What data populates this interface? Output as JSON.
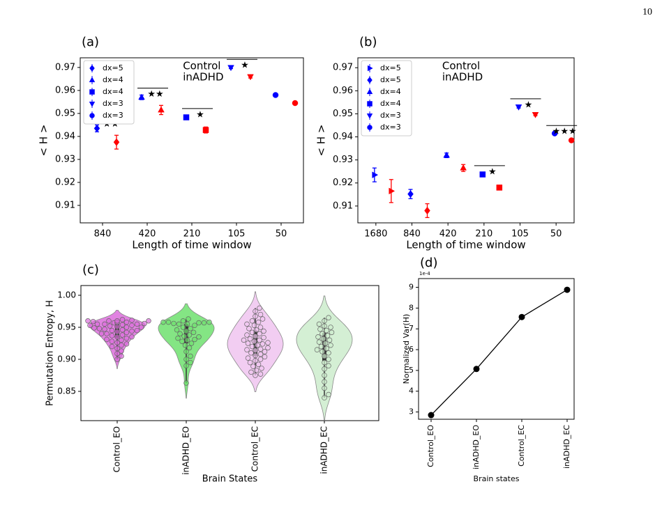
{
  "page_number": "10",
  "chart_data": [
    {
      "type": "errorbar",
      "title": "(a)",
      "xlabel": "Length of time window",
      "ylabel": "< H >",
      "categories": [
        "840",
        "420",
        "210",
        "105",
        "50"
      ],
      "markers": [
        "diamond",
        "triangle-up",
        "square",
        "triangle-down",
        "circle"
      ],
      "series": [
        {
          "name": "Control",
          "color": "#0000ff",
          "values": [
            0.9435,
            0.957,
            0.9483,
            0.97,
            0.958
          ],
          "errors": [
            0.0015,
            0.001,
            0.0008,
            0.0005,
            0.0004
          ]
        },
        {
          "name": "inADHD",
          "color": "#ff0000",
          "values": [
            0.9375,
            0.9515,
            0.9428,
            0.966,
            0.9545
          ],
          "errors": [
            0.003,
            0.002,
            0.0013,
            0.0006,
            0.0007
          ]
        }
      ],
      "legend": {
        "location": "upper left",
        "entries": [
          {
            "name": "dx=5",
            "marker": "diamond"
          },
          {
            "name": "dx=4",
            "marker": "triangle-up"
          },
          {
            "name": "dx=4",
            "marker": "square"
          },
          {
            "name": "dx=3",
            "marker": "triangle-down"
          },
          {
            "name": "dx=3",
            "marker": "circle"
          }
        ]
      },
      "annotations": [
        {
          "category": "840",
          "label": "★★"
        },
        {
          "category": "420",
          "label": "★★"
        },
        {
          "category": "210",
          "label": "★"
        },
        {
          "category": "105",
          "label": "★"
        }
      ],
      "ylim": [
        0.9024,
        0.9742
      ],
      "yticks": [
        0.91,
        0.92,
        0.93,
        0.94,
        0.95,
        0.96,
        0.97
      ]
    },
    {
      "type": "errorbar",
      "title": "(b)",
      "xlabel": "Length of time window",
      "ylabel": "< H >",
      "categories": [
        "1680",
        "840",
        "420",
        "210",
        "105",
        "50"
      ],
      "markers": [
        "triangle-right",
        "diamond",
        "triangle-up",
        "square",
        "triangle-down",
        "circle"
      ],
      "series": [
        {
          "name": "Control",
          "color": "#0000ff",
          "values": [
            0.9235,
            0.9152,
            0.932,
            0.9237,
            0.953,
            0.9415
          ],
          "errors": [
            0.003,
            0.002,
            0.001,
            0.0008,
            0.0005,
            0.0004
          ]
        },
        {
          "name": "inADHD",
          "color": "#ff0000",
          "values": [
            0.9165,
            0.908,
            0.9265,
            0.918,
            0.9497,
            0.9385
          ],
          "errors": [
            0.005,
            0.003,
            0.0015,
            0.001,
            0.0005,
            0.0005
          ]
        }
      ],
      "legend": {
        "location": "upper left",
        "entries": [
          {
            "name": "dx=5",
            "marker": "triangle-right"
          },
          {
            "name": "dx=5",
            "marker": "diamond"
          },
          {
            "name": "dx=4",
            "marker": "triangle-up"
          },
          {
            "name": "dx=4",
            "marker": "square"
          },
          {
            "name": "dx=3",
            "marker": "triangle-down"
          },
          {
            "name": "dx=3",
            "marker": "circle"
          }
        ]
      },
      "annotations": [
        {
          "category": "210",
          "label": "★"
        },
        {
          "category": "105",
          "label": "★"
        },
        {
          "category": "50",
          "label": "★★★"
        }
      ],
      "ylim": [
        0.9027,
        0.9743
      ],
      "yticks": [
        0.91,
        0.92,
        0.93,
        0.94,
        0.95,
        0.96,
        0.97
      ]
    },
    {
      "type": "violin",
      "title": "(c)",
      "xlabel": "Brain States",
      "ylabel": "Permutation Entropy, H",
      "categories": [
        "Control_EO",
        "inADHD_EO",
        "Control_EC",
        "inADHD_EC"
      ],
      "colors": [
        "#dc6ddc",
        "#6fe06f",
        "#f0c4f0",
        "#cdeccd"
      ],
      "values": [
        [
          0.96,
          0.96,
          0.96,
          0.959,
          0.958,
          0.958,
          0.957,
          0.956,
          0.955,
          0.955,
          0.954,
          0.953,
          0.952,
          0.951,
          0.95,
          0.949,
          0.948,
          0.947,
          0.946,
          0.945,
          0.944,
          0.943,
          0.942,
          0.94,
          0.938,
          0.937,
          0.935,
          0.933,
          0.931,
          0.93,
          0.928,
          0.926,
          0.924,
          0.922,
          0.92,
          0.917,
          0.913,
          0.909,
          0.905,
          0.9,
          0.961,
          0.962,
          0.96,
          0.957,
          0.955,
          0.953,
          0.95,
          0.945,
          0.94,
          0.935
        ],
        [
          0.963,
          0.96,
          0.958,
          0.958,
          0.957,
          0.956,
          0.955,
          0.953,
          0.95,
          0.948,
          0.946,
          0.944,
          0.942,
          0.94,
          0.938,
          0.936,
          0.935,
          0.933,
          0.931,
          0.93,
          0.928,
          0.925,
          0.922,
          0.918,
          0.912,
          0.905,
          0.9,
          0.895,
          0.89,
          0.863,
          0.958,
          0.957,
          0.955
        ],
        [
          0.98,
          0.975,
          0.97,
          0.967,
          0.963,
          0.96,
          0.958,
          0.955,
          0.953,
          0.95,
          0.948,
          0.946,
          0.944,
          0.942,
          0.94,
          0.938,
          0.936,
          0.934,
          0.932,
          0.93,
          0.928,
          0.926,
          0.924,
          0.922,
          0.92,
          0.918,
          0.916,
          0.914,
          0.912,
          0.91,
          0.908,
          0.906,
          0.904,
          0.902,
          0.9,
          0.898,
          0.895,
          0.892,
          0.889,
          0.886,
          0.883,
          0.88,
          0.877,
          0.875,
          0.93,
          0.925,
          0.915
        ],
        [
          0.965,
          0.96,
          0.955,
          0.952,
          0.95,
          0.947,
          0.945,
          0.942,
          0.94,
          0.937,
          0.935,
          0.932,
          0.93,
          0.927,
          0.925,
          0.922,
          0.92,
          0.917,
          0.915,
          0.912,
          0.91,
          0.905,
          0.9,
          0.895,
          0.89,
          0.885,
          0.875,
          0.865,
          0.855,
          0.845,
          0.84
        ]
      ],
      "ylim": [
        0.8043,
        1.0152
      ],
      "yticks": [
        0.85,
        {
          "value": 0.9,
          "label": "0.90"
        },
        0.95,
        {
          "value": 1,
          "label": "1.00"
        }
      ]
    },
    {
      "type": "line",
      "title": "(d)",
      "xlabel": "Brain states",
      "ylabel": "Normalized Var(H)",
      "y_offset_label": "1e-4",
      "categories": [
        "Control_EO",
        "inADHD_EO",
        "Control_EC",
        "inADHD_EC"
      ],
      "values": [
        2.85,
        5.07,
        7.57,
        8.88
      ],
      "color": "#000000",
      "ylim": [
        2.65,
        9.42
      ],
      "yticks": [
        3,
        4,
        5,
        6,
        7,
        8,
        9
      ]
    }
  ]
}
